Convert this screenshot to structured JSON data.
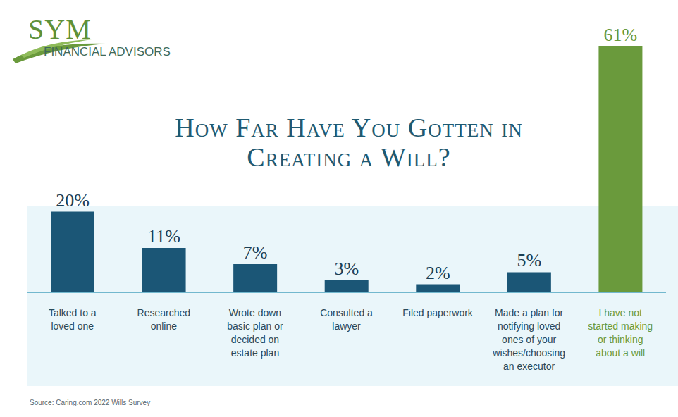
{
  "chart_data": {
    "type": "bar",
    "title": "How Far Have You Gotten in Creating a Will?",
    "categories": [
      "Talked to a loved one",
      "Researched online",
      "Wrote down basic plan or decided on estate plan",
      "Consulted a lawyer",
      "Filed paperwork",
      "Made a plan for notifying loved ones of your wishes/choosing an executor",
      "I have not started making or thinking about a will"
    ],
    "values": [
      20,
      11,
      7,
      3,
      2,
      5,
      61
    ],
    "value_labels": [
      "20%",
      "11%",
      "7%",
      "3%",
      "2%",
      "5%",
      "61%"
    ],
    "colors": [
      "#1b5676",
      "#1b5676",
      "#1b5676",
      "#1b5676",
      "#1b5676",
      "#1b5676",
      "#6a9a3c"
    ],
    "data_labels": true,
    "tick_labels": "x",
    "annotations": [
      "SYM",
      "FINANCIAL ADVISORS",
      "Source: Caring.com 2022 Wills Survey"
    ]
  }
}
